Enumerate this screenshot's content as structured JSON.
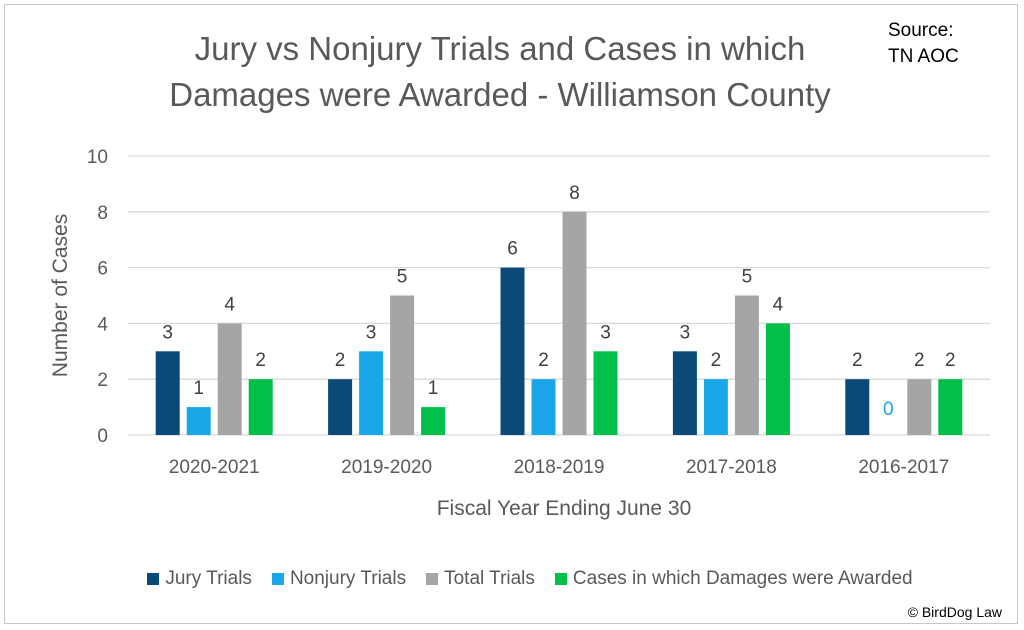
{
  "title_lines": [
    "Jury vs Nonjury Trials and Cases in which",
    "Damages were Awarded  - Williamson County"
  ],
  "source_lines": [
    "Source:",
    "TN AOC"
  ],
  "copyright": "© BirdDog Law",
  "colors": {
    "jury": "#0b4a78",
    "nonjury": "#1aa7ea",
    "total": "#a5a5a5",
    "damages": "#00c04b",
    "zero_label": "#1aa7ea",
    "gridline": "#d9d9d9",
    "text": "#595959"
  },
  "chart_data": {
    "type": "bar",
    "title": "Jury vs Nonjury Trials and Cases in which Damages were Awarded  - Williamson County",
    "xlabel": "Fiscal Year Ending June 30",
    "ylabel": "Number of Cases",
    "ylim": [
      0,
      10
    ],
    "yticks": [
      0,
      2,
      4,
      6,
      8,
      10
    ],
    "grid": true,
    "legend_position": "bottom",
    "categories": [
      "2020-2021",
      "2019-2020",
      "2018-2019",
      "2017-2018",
      "2016-2017"
    ],
    "series": [
      {
        "name": "Jury Trials",
        "key": "jury",
        "values": [
          3,
          2,
          6,
          3,
          2
        ]
      },
      {
        "name": "Nonjury Trials",
        "key": "nonjury",
        "values": [
          1,
          3,
          2,
          2,
          0
        ]
      },
      {
        "name": "Total Trials",
        "key": "total",
        "values": [
          4,
          5,
          8,
          5,
          2
        ]
      },
      {
        "name": "Cases in which Damages were Awarded",
        "key": "damages",
        "values": [
          2,
          1,
          3,
          4,
          2
        ]
      }
    ]
  }
}
